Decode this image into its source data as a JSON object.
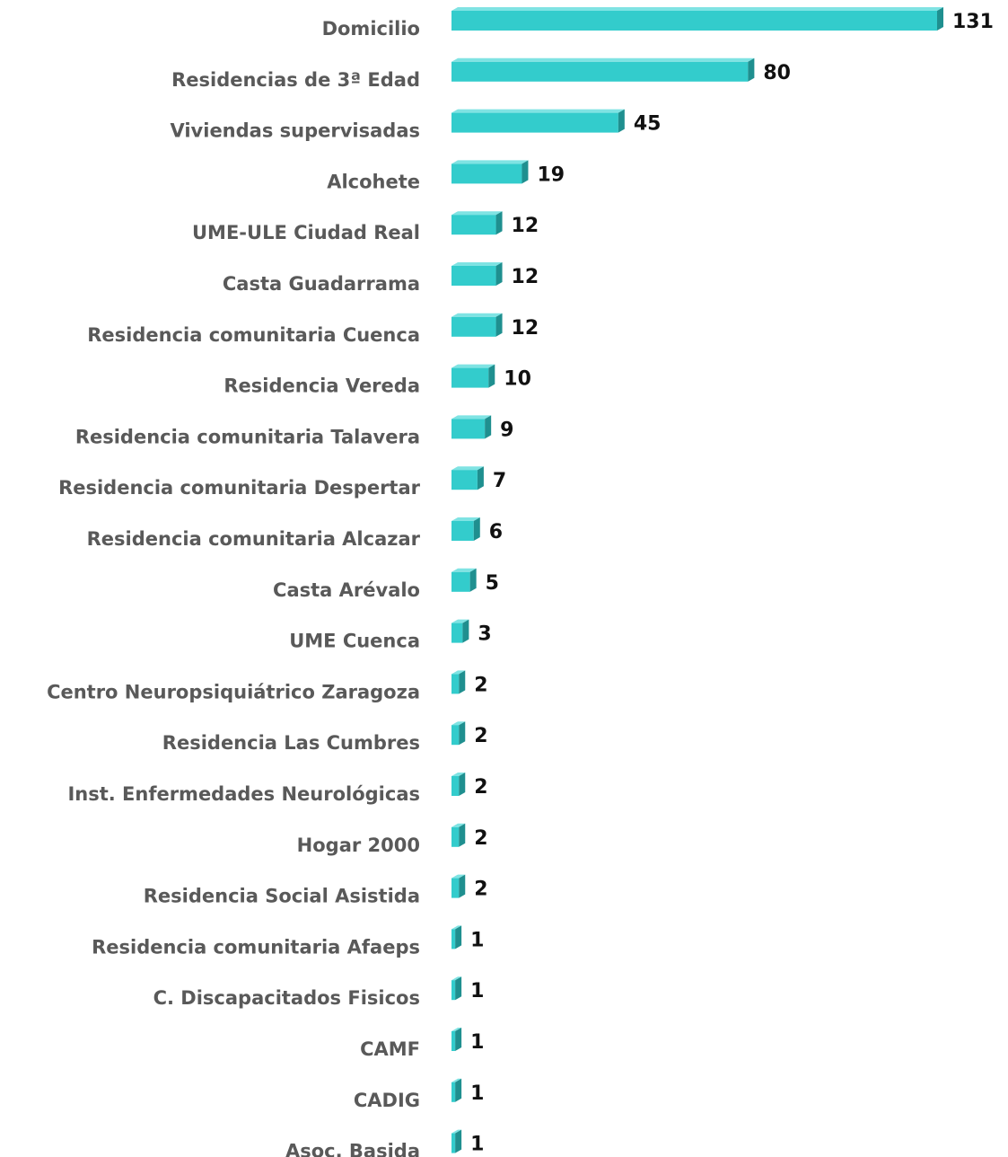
{
  "chart_data": {
    "type": "bar",
    "orientation": "horizontal",
    "color": "#33cccc",
    "categories": [
      "Domicilio",
      "Residencias de 3ª Edad",
      "Viviendas supervisadas",
      "Alcohete",
      "UME-ULE Ciudad Real",
      "Casta Guadarrama",
      "Residencia comunitaria Cuenca",
      "Residencia Vereda",
      "Residencia comunitaria Talavera",
      "Residencia comunitaria Despertar",
      "Residencia comunitaria Alcazar",
      "Casta Arévalo",
      "UME Cuenca",
      "Centro Neuropsiquiátrico Zaragoza",
      "Residencia Las Cumbres",
      "Inst. Enfermedades Neurológicas",
      "Hogar 2000",
      "Residencia Social Asistida",
      "Residencia comunitaria Afaeps",
      "C. Discapacitados Fisicos",
      "CAMF",
      "CADIG",
      "Asoc. Basida"
    ],
    "values": [
      131,
      80,
      45,
      19,
      12,
      12,
      12,
      10,
      9,
      7,
      6,
      5,
      3,
      2,
      2,
      2,
      2,
      2,
      1,
      1,
      1,
      1,
      1
    ]
  }
}
